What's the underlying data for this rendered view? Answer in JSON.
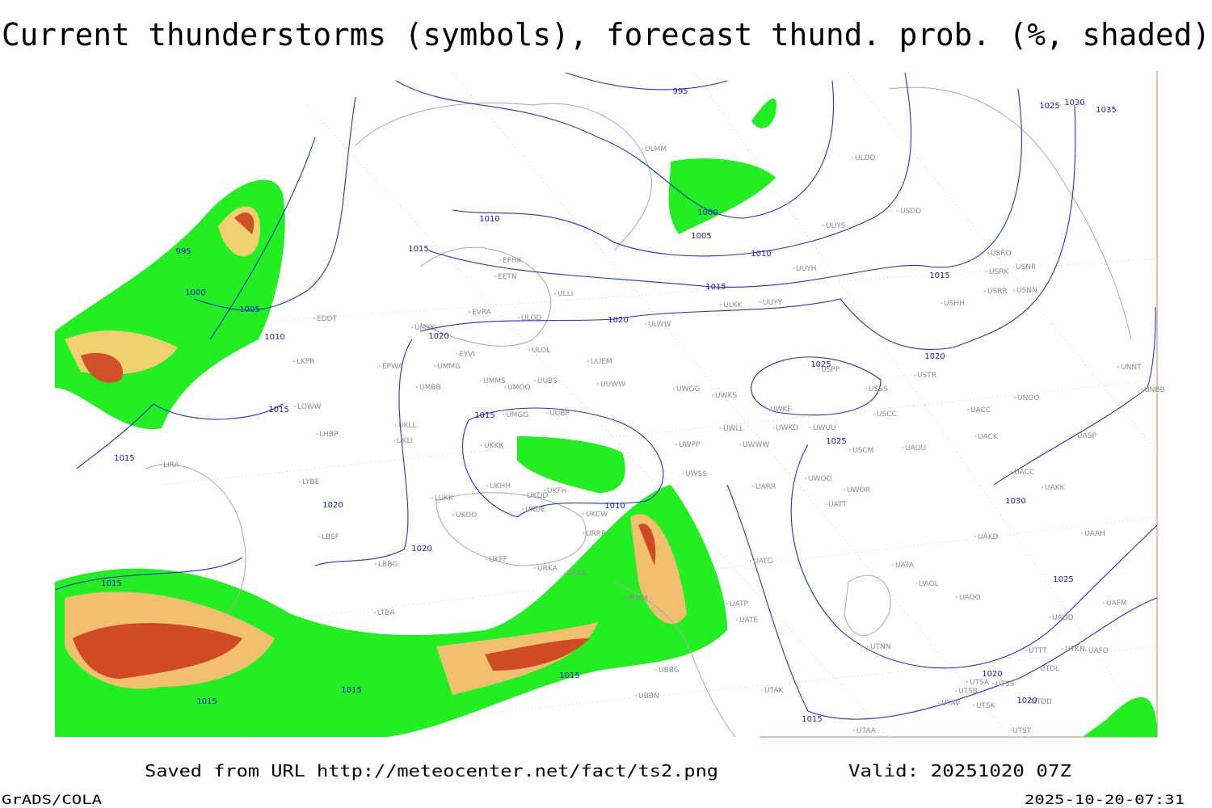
{
  "title": "Current thunderstorms (symbols), forecast thund. prob. (%, shaded)",
  "isobar_labels": [
    995,
    1030,
    1035,
    1025,
    1010,
    1000,
    1005,
    1010,
    1015,
    1015,
    1015,
    995,
    1000,
    1005,
    1010,
    1020,
    1020,
    1020,
    1025,
    1015,
    1015,
    1015,
    1025,
    1020,
    1010,
    1030,
    1020,
    1015,
    1025,
    1015,
    1015,
    1015,
    1020,
    1020,
    1015
  ],
  "stations": [
    "ULDD",
    "ULMM",
    "USDD",
    "UUYS",
    "USRO",
    "USRK",
    "USNR",
    "USRR",
    "USNN",
    "UUYH",
    "USHH",
    "ULKK",
    "UUYY",
    "ULWW",
    "UUEM",
    "EFHK",
    "EETN",
    "ULLI",
    "EVRA",
    "ULOL",
    "ULOD",
    "UMKK",
    "EYVI",
    "EPWA",
    "UMMG",
    "EDDT",
    "LKPR",
    "LOWW",
    "UMMS",
    "UMOO",
    "UUBS",
    "UUWW",
    "UWGG",
    "UWKS",
    "USPP",
    "USSS",
    "USTR",
    "UNOO",
    "UMBB",
    "UKLL",
    "UKLI",
    "LHBP",
    "UMGG",
    "UUBP",
    "UWKE",
    "UWKD",
    "UWUU",
    "USCC",
    "UACC",
    "UKKK",
    "UWLL",
    "UWWW",
    "UWPP",
    "USCM",
    "UAUU",
    "UACK",
    "UASP",
    "LIRA",
    "LYBE",
    "UKHH",
    "UKDD",
    "UKFH",
    "UWSS",
    "UARR",
    "UWOO",
    "UWOR",
    "UACC",
    "UAKK",
    "LUKK",
    "UKOO",
    "UKDE",
    "UKCW",
    "UATT",
    "LBSF",
    "URRR",
    "UAKD",
    "UKFF",
    "LBBG",
    "URKA",
    "URKK",
    "UATG",
    "UATA",
    "UAOL",
    "UAOO",
    "LTBA",
    "UATP",
    "UATE",
    "UADD",
    "UTNN",
    "UTTT",
    "UTKN",
    "UAFO",
    "UTDL",
    "UTSA",
    "UTSS",
    "UTSB",
    "UTAA",
    "UTAV",
    "UTSK",
    "UTST",
    "UTDD",
    "UTAK",
    "UNNT",
    "UNBB",
    "UAAH",
    "UAFM",
    "UBBN",
    "UBBG",
    "URMM"
  ],
  "footer": {
    "source": "Saved from URL http://meteocenter.net/fact/ts2.png",
    "valid": "Valid: 20251020 07Z",
    "software": "GrADS/COLA",
    "timestamp": "2025-10-20-07:31"
  }
}
